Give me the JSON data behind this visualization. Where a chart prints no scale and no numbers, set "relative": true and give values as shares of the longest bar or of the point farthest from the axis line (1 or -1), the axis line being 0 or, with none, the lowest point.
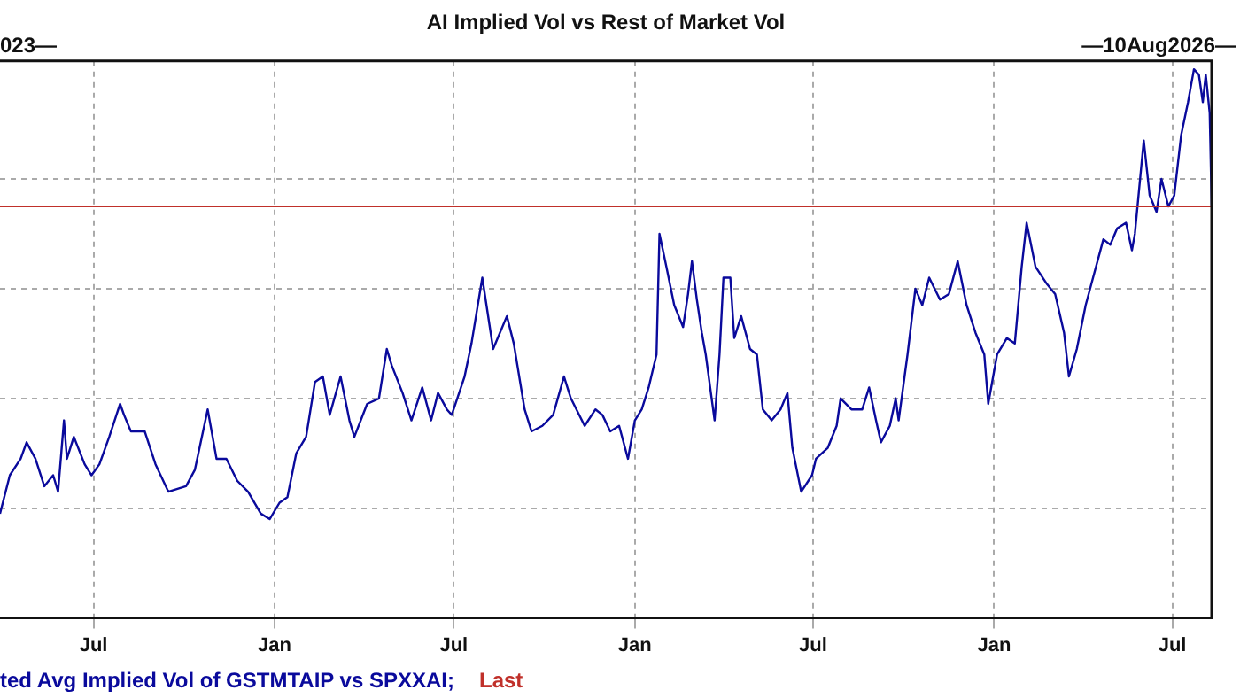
{
  "chart_data": {
    "type": "line",
    "title": "AI Implied Vol vs Rest of Market Vol",
    "relative": true,
    "annotations": [
      "023—",
      "—10Aug2026—"
    ],
    "x": [
      "2023-03-28",
      "2023-04-07",
      "2023-04-18",
      "2023-04-24",
      "2023-05-03",
      "2023-05-12",
      "2023-05-21",
      "2023-05-26",
      "2023-06-01",
      "2023-06-04",
      "2023-06-11",
      "2023-06-22",
      "2023-06-29",
      "2023-07-07",
      "2023-07-17",
      "2023-07-28",
      "2023-08-01",
      "2023-08-08",
      "2023-08-22",
      "2023-09-02",
      "2023-09-15",
      "2023-10-03",
      "2023-10-12",
      "2023-10-25",
      "2023-11-03",
      "2023-11-13",
      "2023-11-24",
      "2023-12-05",
      "2023-12-18",
      "2023-12-27",
      "2024-01-06",
      "2024-01-14",
      "2024-01-23",
      "2024-02-02",
      "2024-02-11",
      "2024-02-19",
      "2024-02-26",
      "2024-03-08",
      "2024-03-17",
      "2024-03-22",
      "2024-04-04",
      "2024-04-16",
      "2024-04-24",
      "2024-04-29",
      "2024-05-10",
      "2024-05-19",
      "2024-05-30",
      "2024-06-08",
      "2024-06-15",
      "2024-06-24",
      "2024-06-29",
      "2024-07-12",
      "2024-07-19",
      "2024-07-30",
      "2024-08-10",
      "2024-08-24",
      "2024-08-31",
      "2024-09-11",
      "2024-09-18",
      "2024-09-29",
      "2024-10-10",
      "2024-10-21",
      "2024-10-28",
      "2024-11-11",
      "2024-11-22",
      "2024-11-29",
      "2024-12-07",
      "2024-12-16",
      "2024-12-25",
      "2025-01-01",
      "2025-01-08",
      "2025-01-15",
      "2025-01-23",
      "2025-01-26",
      "2025-02-02",
      "2025-02-10",
      "2025-02-19",
      "2025-02-24",
      "2025-02-28",
      "2025-03-05",
      "2025-03-10",
      "2025-03-14",
      "2025-03-23",
      "2025-03-28",
      "2025-04-01",
      "2025-04-08",
      "2025-04-12",
      "2025-04-19",
      "2025-04-28",
      "2025-05-05",
      "2025-05-11",
      "2025-05-20",
      "2025-05-29",
      "2025-06-05",
      "2025-06-10",
      "2025-06-19",
      "2025-06-30",
      "2025-07-04",
      "2025-07-16",
      "2025-07-25",
      "2025-07-29",
      "2025-08-09",
      "2025-08-20",
      "2025-08-27",
      "2025-09-03",
      "2025-09-08",
      "2025-09-17",
      "2025-09-23",
      "2025-09-26",
      "2025-10-02",
      "2025-10-05",
      "2025-10-13",
      "2025-10-20",
      "2025-10-27",
      "2025-11-07",
      "2025-11-16",
      "2025-11-25",
      "2025-12-04",
      "2025-12-13",
      "2025-12-22",
      "2025-12-26",
      "2026-01-04",
      "2026-01-14",
      "2026-01-22",
      "2026-01-29",
      "2026-02-03",
      "2026-02-12",
      "2026-02-23",
      "2026-03-04",
      "2026-03-13",
      "2026-03-18",
      "2026-03-26",
      "2026-04-04",
      "2026-04-13",
      "2026-04-22",
      "2026-04-29",
      "2026-05-06",
      "2026-05-15",
      "2026-05-21",
      "2026-05-24",
      "2026-06-02",
      "2026-06-08",
      "2026-06-15",
      "2026-06-20",
      "2026-06-27",
      "2026-07-03",
      "2026-07-10",
      "2026-07-17",
      "2026-07-23",
      "2026-07-28",
      "2026-08-01",
      "2026-08-04",
      "2026-08-08",
      "2026-08-10"
    ],
    "series": [
      {
        "name": "ted Avg Implied Vol of GSTMTAIP vs SPXXAI;",
        "color": "#0a0a9c",
        "values": [
          0.19,
          0.26,
          0.29,
          0.32,
          0.29,
          0.24,
          0.26,
          0.23,
          0.36,
          0.29,
          0.33,
          0.28,
          0.26,
          0.28,
          0.33,
          0.39,
          0.37,
          0.34,
          0.34,
          0.28,
          0.23,
          0.24,
          0.27,
          0.38,
          0.29,
          0.29,
          0.25,
          0.23,
          0.19,
          0.18,
          0.21,
          0.22,
          0.3,
          0.33,
          0.43,
          0.44,
          0.37,
          0.44,
          0.36,
          0.33,
          0.39,
          0.4,
          0.49,
          0.46,
          0.41,
          0.36,
          0.42,
          0.36,
          0.41,
          0.38,
          0.37,
          0.44,
          0.5,
          0.62,
          0.49,
          0.55,
          0.5,
          0.38,
          0.34,
          0.35,
          0.37,
          0.44,
          0.4,
          0.35,
          0.38,
          0.37,
          0.34,
          0.35,
          0.29,
          0.36,
          0.38,
          0.42,
          0.48,
          0.7,
          0.64,
          0.57,
          0.53,
          0.59,
          0.65,
          0.58,
          0.52,
          0.48,
          0.36,
          0.48,
          0.62,
          0.62,
          0.51,
          0.55,
          0.49,
          0.48,
          0.38,
          0.36,
          0.38,
          0.41,
          0.31,
          0.23,
          0.26,
          0.29,
          0.31,
          0.35,
          0.4,
          0.38,
          0.38,
          0.42,
          0.36,
          0.32,
          0.35,
          0.4,
          0.36,
          0.44,
          0.48,
          0.6,
          0.57,
          0.62,
          0.58,
          0.59,
          0.65,
          0.57,
          0.52,
          0.48,
          0.39,
          0.48,
          0.51,
          0.5,
          0.64,
          0.72,
          0.64,
          0.61,
          0.59,
          0.52,
          0.44,
          0.49,
          0.57,
          0.63,
          0.69,
          0.68,
          0.71,
          0.72,
          0.67,
          0.7,
          0.87,
          0.77,
          0.74,
          0.8,
          0.75,
          0.77,
          0.88,
          0.94,
          1.0,
          0.99,
          0.94,
          0.99,
          0.92,
          0.75
        ]
      }
    ],
    "ref_lines": [
      {
        "axis": "y",
        "value": 0.75,
        "label": "Last",
        "color": "#c0302a"
      }
    ],
    "xlim": [
      "2023-03-28",
      "2026-08-10"
    ],
    "xticks": [
      {
        "value": "2023-07-01",
        "label": "Jul"
      },
      {
        "value": "2024-01-01",
        "label": "Jan"
      },
      {
        "value": "2024-07-01",
        "label": "Jul"
      },
      {
        "value": "2025-01-01",
        "label": "Jan"
      },
      {
        "value": "2025-07-01",
        "label": "Jul"
      },
      {
        "value": "2026-01-01",
        "label": "Jan"
      },
      {
        "value": "2026-07-01",
        "label": "Jul"
      }
    ],
    "grid": true,
    "legend": "bottom",
    "tick_labels": "x",
    "marker": "none",
    "line_style": "solid"
  }
}
